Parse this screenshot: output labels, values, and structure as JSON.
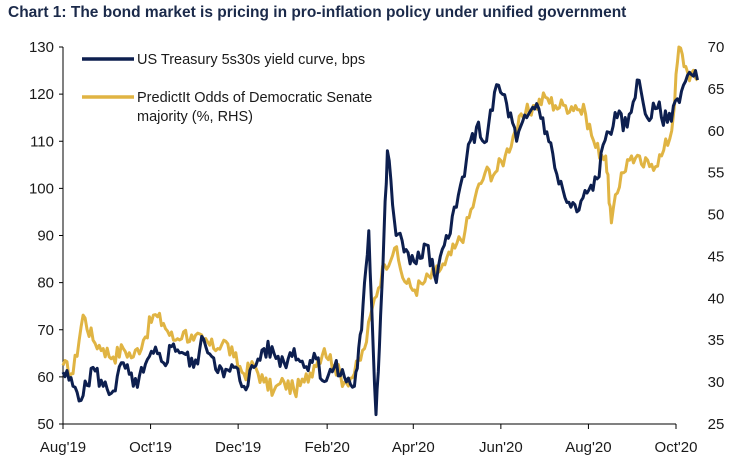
{
  "title": "Chart 1: The bond market is pricing in pro-inflation policy under unified government",
  "chart_data": {
    "type": "line",
    "title": "Chart 1: The bond market is pricing in pro-inflation policy under unified government",
    "x_ticks": [
      "Aug'19",
      "Oct'19",
      "Dec'19",
      "Feb'20",
      "Apr'20",
      "Jun'20",
      "Aug'20",
      "Oct'20"
    ],
    "y_left": {
      "lim": [
        50,
        130
      ],
      "ticks": [
        50,
        60,
        70,
        80,
        90,
        100,
        110,
        120,
        130
      ]
    },
    "y_right": {
      "lim": [
        25,
        70
      ],
      "ticks": [
        25,
        30,
        35,
        40,
        45,
        50,
        55,
        60,
        65,
        70
      ]
    },
    "legend_position": "top-left",
    "grid": false,
    "series": [
      {
        "name": "US Treasury 5s30s yield curve, bps",
        "axis": "left",
        "color": "#0d1f4f",
        "points": [
          [
            "2019-08-01",
            61
          ],
          [
            "2019-08-08",
            58
          ],
          [
            "2019-08-15",
            56
          ],
          [
            "2019-08-22",
            62
          ],
          [
            "2019-08-29",
            58
          ],
          [
            "2019-09-05",
            57
          ],
          [
            "2019-09-12",
            63
          ],
          [
            "2019-09-19",
            58
          ],
          [
            "2019-09-26",
            61
          ],
          [
            "2019-10-03",
            65
          ],
          [
            "2019-10-10",
            63
          ],
          [
            "2019-10-17",
            67
          ],
          [
            "2019-10-24",
            65
          ],
          [
            "2019-10-31",
            62
          ],
          [
            "2019-11-07",
            68
          ],
          [
            "2019-11-14",
            64
          ],
          [
            "2019-11-21",
            60
          ],
          [
            "2019-11-28",
            62
          ],
          [
            "2019-12-05",
            58
          ],
          [
            "2019-12-12",
            62
          ],
          [
            "2019-12-19",
            66
          ],
          [
            "2019-12-26",
            65
          ],
          [
            "2020-01-02",
            63
          ],
          [
            "2020-01-09",
            66
          ],
          [
            "2020-01-16",
            62
          ],
          [
            "2020-01-23",
            65
          ],
          [
            "2020-01-30",
            59
          ],
          [
            "2020-02-06",
            62
          ],
          [
            "2020-02-13",
            60
          ],
          [
            "2020-02-20",
            58
          ],
          [
            "2020-02-25",
            70
          ],
          [
            "2020-03-01",
            91
          ],
          [
            "2020-03-06",
            52
          ],
          [
            "2020-03-10",
            78
          ],
          [
            "2020-03-14",
            108
          ],
          [
            "2020-03-20",
            90
          ],
          [
            "2020-03-27",
            87
          ],
          [
            "2020-04-03",
            84
          ],
          [
            "2020-04-10",
            88
          ],
          [
            "2020-04-17",
            80
          ],
          [
            "2020-04-24",
            90
          ],
          [
            "2020-05-01",
            96
          ],
          [
            "2020-05-08",
            106
          ],
          [
            "2020-05-15",
            113
          ],
          [
            "2020-05-22",
            110
          ],
          [
            "2020-05-29",
            122
          ],
          [
            "2020-06-05",
            118
          ],
          [
            "2020-06-12",
            110
          ],
          [
            "2020-06-19",
            115
          ],
          [
            "2020-06-26",
            118
          ],
          [
            "2020-07-03",
            112
          ],
          [
            "2020-07-10",
            103
          ],
          [
            "2020-07-17",
            97
          ],
          [
            "2020-07-24",
            95
          ],
          [
            "2020-07-31",
            99
          ],
          [
            "2020-08-07",
            102
          ],
          [
            "2020-08-14",
            112
          ],
          [
            "2020-08-21",
            115
          ],
          [
            "2020-08-28",
            113
          ],
          [
            "2020-09-04",
            123
          ],
          [
            "2020-09-11",
            115
          ],
          [
            "2020-09-18",
            117
          ],
          [
            "2020-09-25",
            114
          ],
          [
            "2020-10-02",
            119
          ],
          [
            "2020-10-09",
            124
          ],
          [
            "2020-10-16",
            123
          ]
        ]
      },
      {
        "name": "PredictIt Odds of Democratic Senate majority (%, RHS)",
        "axis": "right",
        "color": "#e0b443",
        "points": [
          [
            "2019-08-01",
            32
          ],
          [
            "2019-08-08",
            31
          ],
          [
            "2019-08-15",
            38
          ],
          [
            "2019-08-22",
            35
          ],
          [
            "2019-08-29",
            34
          ],
          [
            "2019-09-05",
            33
          ],
          [
            "2019-09-12",
            34
          ],
          [
            "2019-09-19",
            33
          ],
          [
            "2019-09-26",
            35
          ],
          [
            "2019-10-03",
            38
          ],
          [
            "2019-10-10",
            37
          ],
          [
            "2019-10-17",
            35
          ],
          [
            "2019-10-24",
            36
          ],
          [
            "2019-10-31",
            35
          ],
          [
            "2019-11-07",
            35
          ],
          [
            "2019-11-14",
            34
          ],
          [
            "2019-11-21",
            35
          ],
          [
            "2019-11-28",
            33
          ],
          [
            "2019-12-05",
            31
          ],
          [
            "2019-12-12",
            32
          ],
          [
            "2019-12-19",
            30
          ],
          [
            "2019-12-26",
            29
          ],
          [
            "2020-01-02",
            30
          ],
          [
            "2020-01-09",
            29
          ],
          [
            "2020-01-16",
            30
          ],
          [
            "2020-01-23",
            32
          ],
          [
            "2020-01-30",
            34
          ],
          [
            "2020-02-06",
            32
          ],
          [
            "2020-02-13",
            30
          ],
          [
            "2020-02-20",
            31
          ],
          [
            "2020-02-27",
            34
          ],
          [
            "2020-03-05",
            40
          ],
          [
            "2020-03-12",
            44
          ],
          [
            "2020-03-19",
            46
          ],
          [
            "2020-03-26",
            42
          ],
          [
            "2020-04-02",
            41
          ],
          [
            "2020-04-09",
            42
          ],
          [
            "2020-04-16",
            43
          ],
          [
            "2020-04-23",
            44
          ],
          [
            "2020-04-30",
            46
          ],
          [
            "2020-05-07",
            48
          ],
          [
            "2020-05-14",
            52
          ],
          [
            "2020-05-21",
            55
          ],
          [
            "2020-05-28",
            55
          ],
          [
            "2020-06-04",
            57
          ],
          [
            "2020-06-11",
            60
          ],
          [
            "2020-06-18",
            62
          ],
          [
            "2020-06-25",
            63
          ],
          [
            "2020-07-02",
            64
          ],
          [
            "2020-07-09",
            63
          ],
          [
            "2020-07-16",
            63
          ],
          [
            "2020-07-23",
            63
          ],
          [
            "2020-07-30",
            62
          ],
          [
            "2020-08-06",
            58
          ],
          [
            "2020-08-13",
            57
          ],
          [
            "2020-08-17",
            49
          ],
          [
            "2020-08-24",
            55
          ],
          [
            "2020-08-31",
            57
          ],
          [
            "2020-09-07",
            56
          ],
          [
            "2020-09-14",
            56
          ],
          [
            "2020-09-21",
            57
          ],
          [
            "2020-09-28",
            60
          ],
          [
            "2020-10-03",
            70
          ],
          [
            "2020-10-09",
            67
          ],
          [
            "2020-10-16",
            66
          ]
        ]
      }
    ]
  }
}
